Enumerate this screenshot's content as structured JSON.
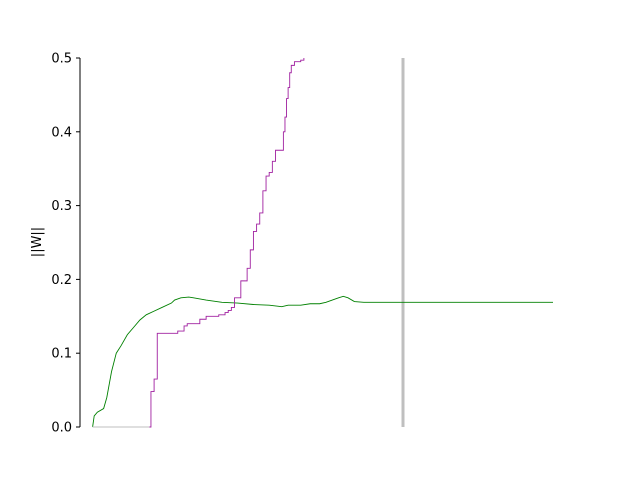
{
  "chart_data": {
    "type": "line",
    "title": "",
    "xlabel": "",
    "ylabel": "||W||",
    "ylim": [
      0,
      0.5
    ],
    "xlim": [
      0,
      1
    ],
    "yticks": [
      "0.0",
      "0.1",
      "0.2",
      "0.3",
      "0.4",
      "0.5"
    ],
    "ytick_values": [
      0.0,
      0.1,
      0.2,
      0.3,
      0.4,
      0.5
    ],
    "x_axis_visible": false,
    "grid": false,
    "vline": {
      "x": 0.67,
      "color": "#bfbfbf"
    },
    "series": [
      {
        "color": "#008000",
        "step": false,
        "points": [
          [
            0.04,
            0.0
          ],
          [
            0.045,
            0.015
          ],
          [
            0.055,
            0.02
          ],
          [
            0.075,
            0.025
          ],
          [
            0.085,
            0.04
          ],
          [
            0.1,
            0.075
          ],
          [
            0.115,
            0.1
          ],
          [
            0.13,
            0.11
          ],
          [
            0.15,
            0.125
          ],
          [
            0.17,
            0.135
          ],
          [
            0.19,
            0.145
          ],
          [
            0.21,
            0.152
          ],
          [
            0.235,
            0.157
          ],
          [
            0.26,
            0.162
          ],
          [
            0.29,
            0.168
          ],
          [
            0.3,
            0.172
          ],
          [
            0.32,
            0.175
          ],
          [
            0.345,
            0.176
          ],
          [
            0.36,
            0.175
          ],
          [
            0.4,
            0.172
          ],
          [
            0.45,
            0.169
          ],
          [
            0.5,
            0.168
          ],
          [
            0.55,
            0.166
          ],
          [
            0.6,
            0.165
          ],
          [
            0.64,
            0.163
          ],
          [
            0.66,
            0.165
          ],
          [
            0.7,
            0.165
          ],
          [
            0.73,
            0.167
          ],
          [
            0.76,
            0.167
          ],
          [
            0.78,
            0.169
          ],
          [
            0.8,
            0.172
          ],
          [
            0.82,
            0.175
          ],
          [
            0.835,
            0.177
          ],
          [
            0.85,
            0.175
          ],
          [
            0.87,
            0.17
          ],
          [
            0.9,
            0.169
          ],
          [
            1.0,
            0.169
          ],
          [
            1.5,
            0.169
          ]
        ]
      },
      {
        "color": "#bfbfbf",
        "step": false,
        "points": [
          [
            0.04,
            0.0
          ],
          [
            0.22,
            0.0
          ]
        ]
      },
      {
        "color": "#a020a0",
        "step": true,
        "points": [
          [
            0.22,
            0.0
          ],
          [
            0.225,
            0.048
          ],
          [
            0.235,
            0.065
          ],
          [
            0.245,
            0.127
          ],
          [
            0.27,
            0.127
          ],
          [
            0.3,
            0.127
          ],
          [
            0.31,
            0.13
          ],
          [
            0.33,
            0.137
          ],
          [
            0.34,
            0.14
          ],
          [
            0.38,
            0.146
          ],
          [
            0.4,
            0.15
          ],
          [
            0.44,
            0.152
          ],
          [
            0.46,
            0.155
          ],
          [
            0.47,
            0.158
          ],
          [
            0.48,
            0.162
          ],
          [
            0.49,
            0.175
          ],
          [
            0.51,
            0.198
          ],
          [
            0.53,
            0.215
          ],
          [
            0.54,
            0.24
          ],
          [
            0.55,
            0.265
          ],
          [
            0.56,
            0.275
          ],
          [
            0.57,
            0.29
          ],
          [
            0.58,
            0.32
          ],
          [
            0.59,
            0.34
          ],
          [
            0.6,
            0.345
          ],
          [
            0.61,
            0.36
          ],
          [
            0.62,
            0.375
          ],
          [
            0.635,
            0.375
          ],
          [
            0.645,
            0.4
          ],
          [
            0.65,
            0.42
          ],
          [
            0.655,
            0.445
          ],
          [
            0.66,
            0.46
          ],
          [
            0.665,
            0.48
          ],
          [
            0.67,
            0.49
          ],
          [
            0.68,
            0.495
          ],
          [
            0.7,
            0.497
          ],
          [
            0.71,
            0.5
          ]
        ]
      }
    ]
  }
}
